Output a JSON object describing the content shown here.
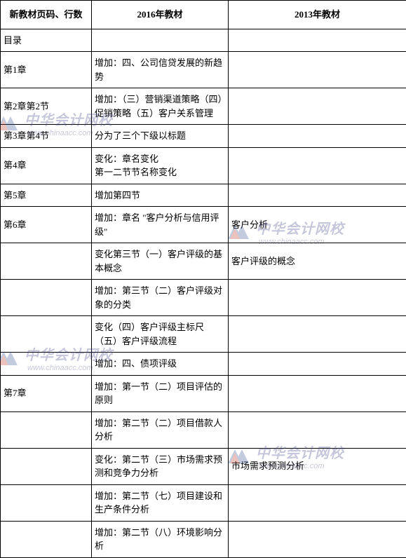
{
  "headers": {
    "col1": "新教材页码、行数",
    "col2": "2016年教材",
    "col3": "2013年教材"
  },
  "rows": [
    {
      "c1": "目录",
      "c2": "",
      "c3": ""
    },
    {
      "c1": "第1章",
      "c2": "增加：四、公司信贷发展的新趋势",
      "c3": ""
    },
    {
      "c1": "第2章第2节",
      "c2": "增加：（三）营销渠道策略（四）促销策略（五）客户关系管理",
      "c3": ""
    },
    {
      "c1": "第3章第4节",
      "c2": "分为了三个下级以标题",
      "c3": ""
    },
    {
      "c1": "第4章",
      "c2": "变化：章名变化\n第一二节节名称变化",
      "c3": ""
    },
    {
      "c1": "第5章",
      "c2": "增加第四节",
      "c3": ""
    },
    {
      "c1": "第6章",
      "c2": "增加：章名 \"客户分析与信用评级\"",
      "c3": "客户分析"
    },
    {
      "c1": "",
      "c2": "变化第三节（一）客户评级的基本概念",
      "c3": "客户评级的概念"
    },
    {
      "c1": "",
      "c2": "增加：第三节（二）客户评级对象的分类",
      "c3": ""
    },
    {
      "c1": "",
      "c2": "变化（四）客户评级主标尺（五）客户评级流程",
      "c3": ""
    },
    {
      "c1": "",
      "c2": "增加：四、债项评级",
      "c3": ""
    },
    {
      "c1": "第7章",
      "c2": "增加：第一节（二）项目评估的原则",
      "c3": ""
    },
    {
      "c1": "",
      "c2": "增加：第二节（二）项目借款人分析",
      "c3": ""
    },
    {
      "c1": "",
      "c2": "变化：第二节（三）市场需求预测和竞争力分析",
      "c3": "市场需求预测分析"
    },
    {
      "c1": "",
      "c2": "增加：第二节（七）项目建设和生产条件分析",
      "c3": ""
    },
    {
      "c1": "",
      "c2": "增加：第二节（八）环境影响分析",
      "c3": ""
    }
  ],
  "watermark": {
    "text_cn": "中华会计网校",
    "text_en": "www.chinaacc.com",
    "logo_color_blue": "#3b5998",
    "logo_color_red": "#c0392b"
  }
}
